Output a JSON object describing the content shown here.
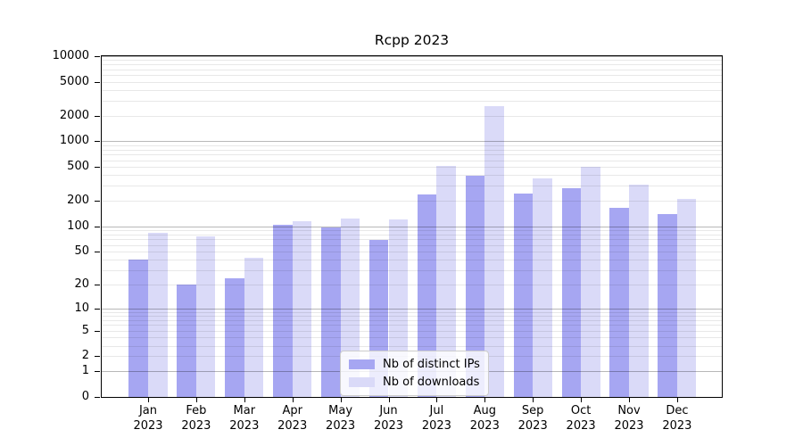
{
  "title": "Rcpp 2023",
  "colors": {
    "ips": "#a6a6f2",
    "downloads": "#dadaf8",
    "grid_major": "rgba(0,0,0,0.28)",
    "grid_minor": "rgba(0,0,0,0.09)",
    "spine": "#000000",
    "legend_border": "#cccccc",
    "legend_bg": "rgba(255,255,255,0.8)"
  },
  "legend": {
    "items": [
      {
        "label": "Nb of distinct IPs",
        "series": "ips"
      },
      {
        "label": "Nb of downloads",
        "series": "downloads"
      }
    ]
  },
  "y_axis": {
    "tick_labels": [
      "0",
      "1",
      "2",
      "5",
      "10",
      "20",
      "50",
      "100",
      "200",
      "500",
      "1000",
      "2000",
      "5000",
      "10000"
    ]
  },
  "x_axis": {
    "ticks": [
      {
        "month": "Jan",
        "year": "2023"
      },
      {
        "month": "Feb",
        "year": "2023"
      },
      {
        "month": "Mar",
        "year": "2023"
      },
      {
        "month": "Apr",
        "year": "2023"
      },
      {
        "month": "May",
        "year": "2023"
      },
      {
        "month": "Jun",
        "year": "2023"
      },
      {
        "month": "Jul",
        "year": "2023"
      },
      {
        "month": "Aug",
        "year": "2023"
      },
      {
        "month": "Sep",
        "year": "2023"
      },
      {
        "month": "Oct",
        "year": "2023"
      },
      {
        "month": "Nov",
        "year": "2023"
      },
      {
        "month": "Dec",
        "year": "2023"
      }
    ]
  },
  "chart_data": {
    "type": "bar",
    "title": "Rcpp 2023",
    "categories": [
      "Jan 2023",
      "Feb 2023",
      "Mar 2023",
      "Apr 2023",
      "May 2023",
      "Jun 2023",
      "Jul 2023",
      "Aug 2023",
      "Sep 2023",
      "Oct 2023",
      "Nov 2023",
      "Dec 2023"
    ],
    "series": [
      {
        "name": "Nb of distinct IPs",
        "key": "ips",
        "values": [
          40,
          20,
          24,
          105,
          97,
          68,
          240,
          390,
          245,
          283,
          165,
          140
        ]
      },
      {
        "name": "Nb of downloads",
        "key": "downloads",
        "values": [
          84,
          76,
          42,
          116,
          123,
          120,
          520,
          2600,
          365,
          500,
          310,
          210
        ]
      }
    ],
    "y_scale": "log1p",
    "y_ticks": [
      0,
      1,
      2,
      5,
      10,
      20,
      50,
      100,
      200,
      500,
      1000,
      2000,
      5000,
      10000
    ],
    "ylim": [
      0,
      10000
    ],
    "grid": true,
    "grid_minor": true,
    "legend_position": "lower center"
  }
}
